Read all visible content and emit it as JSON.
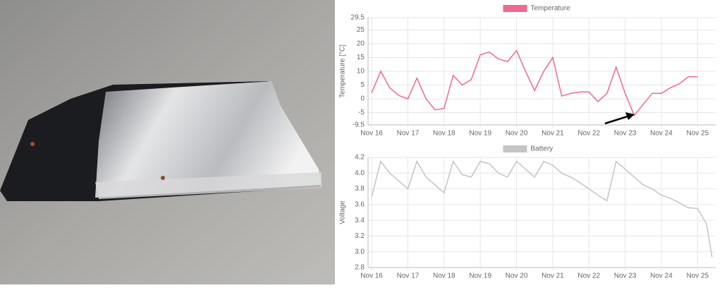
{
  "chart_data": [
    {
      "type": "line",
      "legend": "Temperature",
      "color": "#ef6a8c",
      "ylabel": "Temperature [°C]",
      "ylim": [
        -9.5,
        29.5
      ],
      "yticks": [
        -9.5,
        -5,
        0,
        5,
        10,
        15,
        20,
        25,
        29.5
      ],
      "xlim": [
        -0.1,
        9.5
      ],
      "xticks": [
        {
          "value": 0,
          "label": "Nov 16"
        },
        {
          "value": 1,
          "label": "Nov 17"
        },
        {
          "value": 2,
          "label": "Nov 18"
        },
        {
          "value": 3,
          "label": "Nov 19"
        },
        {
          "value": 4,
          "label": "Nov 20"
        },
        {
          "value": 5,
          "label": "Nov 21"
        },
        {
          "value": 6,
          "label": "Nov 22"
        },
        {
          "value": 7,
          "label": "Nov 23"
        },
        {
          "value": 8,
          "label": "Nov 24"
        },
        {
          "value": 9,
          "label": "Nov 25"
        }
      ],
      "x": [
        0,
        0.25,
        0.5,
        0.75,
        1,
        1.25,
        1.5,
        1.75,
        2,
        2.25,
        2.5,
        2.75,
        3,
        3.25,
        3.5,
        3.75,
        4,
        4.25,
        4.5,
        4.75,
        5,
        5.25,
        5.5,
        5.75,
        6,
        6.25,
        6.5,
        6.75,
        7,
        7.25,
        7.5,
        7.75,
        8,
        8.25,
        8.5,
        8.75,
        9
      ],
      "values": [
        2.2,
        10,
        4,
        1.2,
        0,
        7.5,
        0,
        -4,
        -3.5,
        8.5,
        5,
        7,
        16,
        17,
        14.5,
        13.5,
        17.5,
        10,
        3,
        10,
        15,
        1,
        2,
        2.5,
        2.5,
        -1,
        2,
        11.5,
        2,
        -6,
        -2,
        2,
        2,
        4,
        5.5,
        8,
        8
      ],
      "grid": true
    },
    {
      "type": "line",
      "legend": "Battery",
      "color": "#c4c4c4",
      "ylabel": "Voltage",
      "ylim": [
        2.8,
        4.2
      ],
      "yticks": [
        2.8,
        {
          "value": 3,
          "label": "3.0"
        },
        3.2,
        3.4,
        3.6,
        3.8,
        {
          "value": 4,
          "label": "4.0"
        },
        4.2
      ],
      "xlim": [
        -0.1,
        9.5
      ],
      "xticks": [
        {
          "value": 0,
          "label": "Nov 16"
        },
        {
          "value": 1,
          "label": "Nov 17"
        },
        {
          "value": 2,
          "label": "Nov 18"
        },
        {
          "value": 3,
          "label": "Nov 19"
        },
        {
          "value": 4,
          "label": "Nov 20"
        },
        {
          "value": 5,
          "label": "Nov 21"
        },
        {
          "value": 6,
          "label": "Nov 22"
        },
        {
          "value": 7,
          "label": "Nov 23"
        },
        {
          "value": 8,
          "label": "Nov 24"
        },
        {
          "value": 9,
          "label": "Nov 25"
        }
      ],
      "x": [
        0,
        0.25,
        0.5,
        0.75,
        1,
        1.25,
        1.5,
        1.75,
        2,
        2.25,
        2.5,
        2.75,
        3,
        3.25,
        3.5,
        3.75,
        4,
        4.25,
        4.5,
        4.75,
        5,
        5.25,
        5.5,
        5.75,
        6,
        6.25,
        6.5,
        6.75,
        7,
        7.25,
        7.5,
        7.75,
        8,
        8.25,
        8.5,
        8.75,
        9,
        9.25,
        9.4
      ],
      "values": [
        3.7,
        4.15,
        4.0,
        3.9,
        3.8,
        4.15,
        3.95,
        3.85,
        3.75,
        4.15,
        3.98,
        3.95,
        4.15,
        4.12,
        4.0,
        3.95,
        4.15,
        4.05,
        3.95,
        4.15,
        4.1,
        4.0,
        3.95,
        3.88,
        3.8,
        3.72,
        3.65,
        4.15,
        4.05,
        3.95,
        3.85,
        3.8,
        3.72,
        3.68,
        3.62,
        3.56,
        3.55,
        3.35,
        2.93
      ],
      "grid": true
    }
  ]
}
